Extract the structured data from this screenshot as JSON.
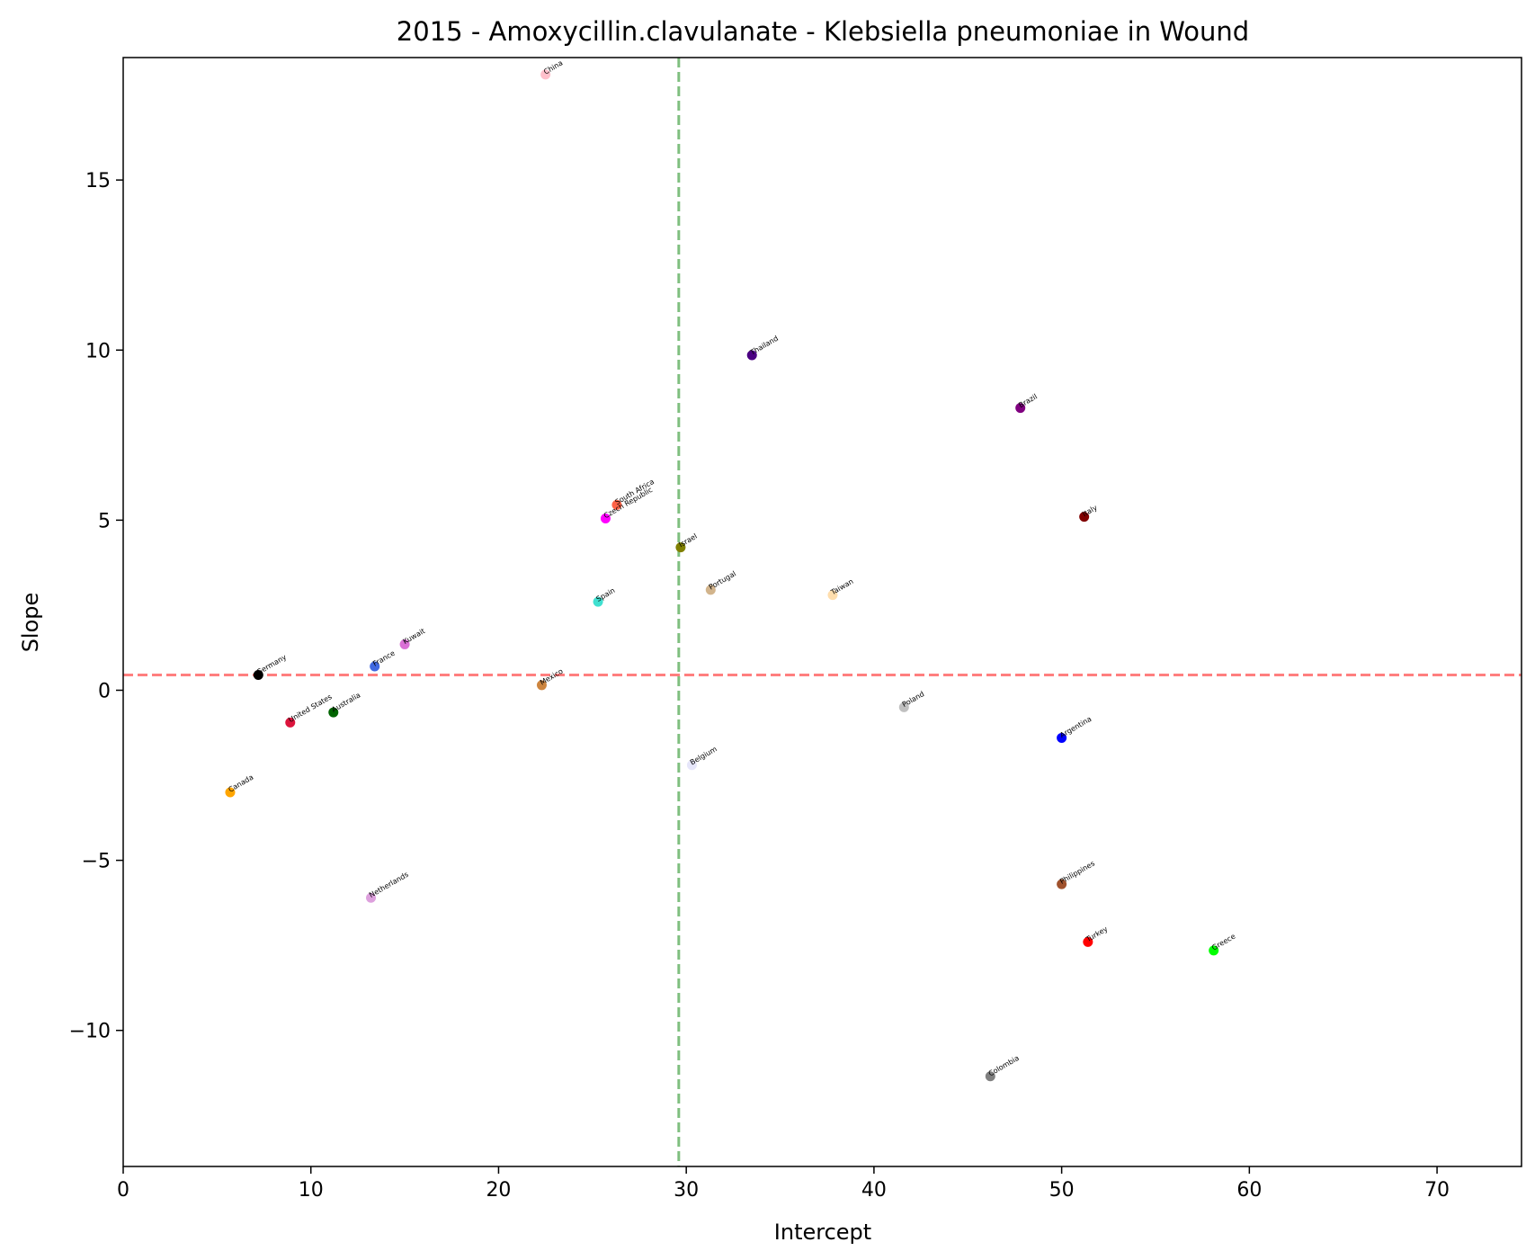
{
  "chart_data": {
    "type": "scatter",
    "title": "2015 - Amoxycillin.clavulanate - Klebsiella pneumoniae in Wound",
    "xlabel": "Intercept",
    "ylabel": "Slope",
    "xlim": [
      0,
      74.5
    ],
    "ylim": [
      -14,
      18.6
    ],
    "xticks": [
      0,
      10,
      20,
      30,
      40,
      50,
      60,
      70
    ],
    "xtick_labels": [
      "0",
      "10",
      "20",
      "30",
      "40",
      "50",
      "60",
      "70"
    ],
    "yticks": [
      -10,
      -5,
      0,
      5,
      10,
      15
    ],
    "ytick_labels": [
      "−10",
      "−5",
      "0",
      "5",
      "10",
      "15"
    ],
    "grid": false,
    "reference_lines": [
      {
        "orientation": "vertical",
        "value": 29.6,
        "color": "#008000",
        "style": "dashed"
      },
      {
        "orientation": "horizontal",
        "value": 0.45,
        "color": "#ff0000",
        "style": "dashed"
      }
    ],
    "points": [
      {
        "label": "China",
        "x": 22.5,
        "y": 18.1,
        "color": "#ffc0cb"
      },
      {
        "label": "Thailand",
        "x": 33.5,
        "y": 9.85,
        "color": "#4b0082"
      },
      {
        "label": "Brazil",
        "x": 47.8,
        "y": 8.3,
        "color": "#800080"
      },
      {
        "label": "South Africa",
        "x": 26.3,
        "y": 5.45,
        "color": "#ff6347"
      },
      {
        "label": "Czech Republic",
        "x": 25.7,
        "y": 5.05,
        "color": "#ff00ff"
      },
      {
        "label": "Italy",
        "x": 51.2,
        "y": 5.1,
        "color": "#800000"
      },
      {
        "label": "Israel",
        "x": 29.7,
        "y": 4.2,
        "color": "#808000"
      },
      {
        "label": "Portugal",
        "x": 31.3,
        "y": 2.95,
        "color": "#d2b48c"
      },
      {
        "label": "Taiwan",
        "x": 37.8,
        "y": 2.8,
        "color": "#ffdead"
      },
      {
        "label": "Spain",
        "x": 25.3,
        "y": 2.6,
        "color": "#40e0d0"
      },
      {
        "label": "Kuwait",
        "x": 15.0,
        "y": 1.35,
        "color": "#da70d6"
      },
      {
        "label": "France",
        "x": 13.4,
        "y": 0.7,
        "color": "#4169e1"
      },
      {
        "label": "Germany",
        "x": 7.2,
        "y": 0.45,
        "color": "#000000"
      },
      {
        "label": "Mexico",
        "x": 22.3,
        "y": 0.15,
        "color": "#cd853f"
      },
      {
        "label": "Poland",
        "x": 41.6,
        "y": -0.5,
        "color": "#c0c0c0"
      },
      {
        "label": "Australia",
        "x": 11.2,
        "y": -0.65,
        "color": "#006400"
      },
      {
        "label": "United States",
        "x": 8.9,
        "y": -0.95,
        "color": "#dc143c"
      },
      {
        "label": "Argentina",
        "x": 50.0,
        "y": -1.4,
        "color": "#0000ff"
      },
      {
        "label": "Belgium",
        "x": 30.3,
        "y": -2.2,
        "color": "#e6e6fa"
      },
      {
        "label": "Canada",
        "x": 5.7,
        "y": -3.0,
        "color": "#ffa500"
      },
      {
        "label": "Philippines",
        "x": 50.0,
        "y": -5.7,
        "color": "#a0522d"
      },
      {
        "label": "Netherlands",
        "x": 13.2,
        "y": -6.1,
        "color": "#dda0dd"
      },
      {
        "label": "Turkey",
        "x": 51.4,
        "y": -7.4,
        "color": "#ff0000"
      },
      {
        "label": "Greece",
        "x": 58.1,
        "y": -7.65,
        "color": "#00ff00"
      },
      {
        "label": "Colombia",
        "x": 46.2,
        "y": -11.35,
        "color": "#808080"
      }
    ]
  }
}
